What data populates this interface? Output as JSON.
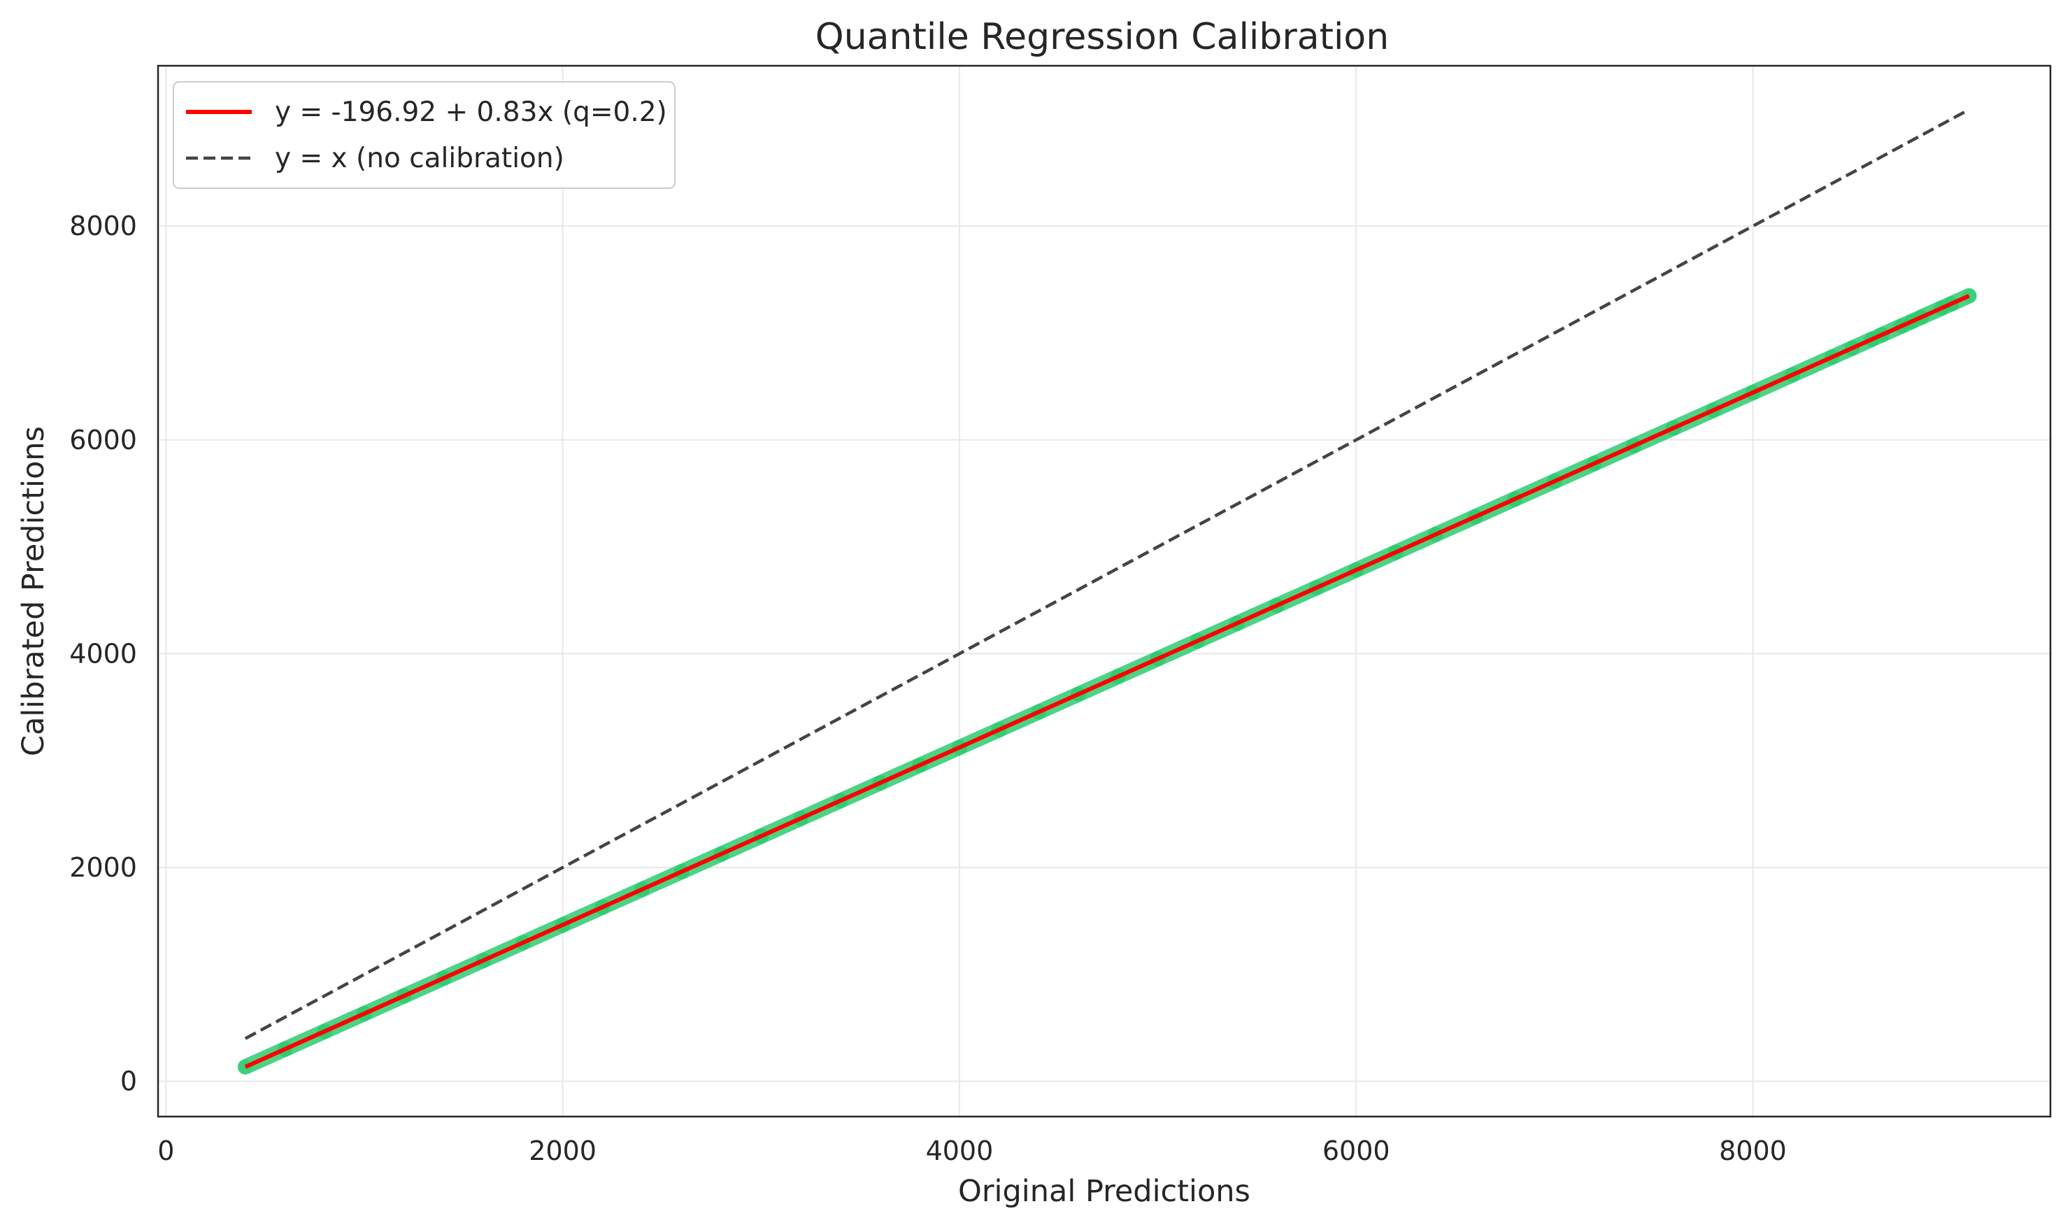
{
  "chart_data": {
    "type": "scatter",
    "title": "Quantile Regression Calibration",
    "xlabel": "Original Predictions",
    "ylabel": "Calibrated Predictions",
    "xlim": [
      -40,
      9500
    ],
    "ylim": [
      -330,
      9500
    ],
    "xticks": [
      0,
      2000,
      4000,
      6000,
      8000
    ],
    "yticks": [
      0,
      2000,
      4000,
      6000,
      8000
    ],
    "grid": true,
    "legend_position": "top-left",
    "x_range": [
      400,
      9090
    ],
    "series": [
      {
        "name": "y = -196.92 + 0.83x (q=0.2)",
        "kind": "line",
        "intercept": -196.92,
        "slope": 0.83,
        "color": "#ff0000"
      },
      {
        "name": "y = x (no calibration)",
        "kind": "dashed-line",
        "intercept": 0,
        "slope": 1,
        "color": "#444444"
      }
    ],
    "points": {
      "color": "#2ecc71",
      "x": [
        400,
        600,
        800,
        1000,
        1200,
        1400,
        1600,
        1800,
        2000,
        2200,
        2400,
        2600,
        2800,
        3000,
        3200,
        3400,
        3600,
        3800,
        4000,
        4200,
        4400,
        4600,
        4800,
        5000,
        5200,
        5400,
        5600,
        5800,
        6000,
        6200,
        6400,
        6600,
        6800,
        7000,
        7200,
        7400,
        7600,
        7800,
        8000,
        8200,
        8400,
        8500,
        8600,
        8650,
        8750,
        8800,
        8850,
        8950,
        9000,
        9090
      ],
      "y": [
        135,
        301,
        467,
        633,
        799,
        965,
        1131,
        1297,
        1463,
        1629,
        1795,
        1961,
        2127,
        2293,
        2459,
        2625,
        2791,
        2957,
        3123,
        3289,
        3455,
        3621,
        3787,
        3953,
        4119,
        4285,
        4451,
        4617,
        4783,
        4949,
        5115,
        5281,
        5447,
        5613,
        5779,
        5945,
        6111,
        6277,
        6443,
        6609,
        6775,
        6858,
        6941,
        6983,
        7066,
        7107,
        7149,
        7232,
        7273,
        7348
      ]
    }
  }
}
